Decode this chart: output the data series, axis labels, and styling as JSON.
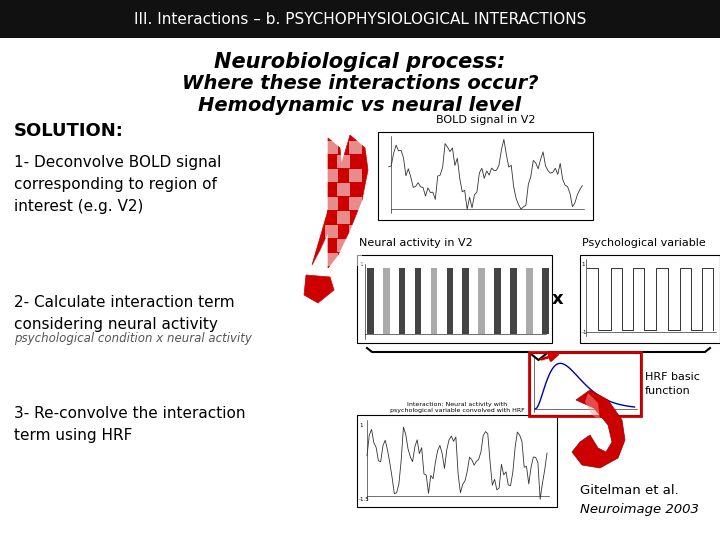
{
  "title_bar_text": "III. Interactions – b. PSYCHOPHYSIOLOGICAL INTERACTIONS",
  "title_bar_bg": "#111111",
  "title_bar_color": "#ffffff",
  "title_bar_fontsize": 11,
  "heading_line1": "Neurobiological process:",
  "heading_line2": "Where these interactions occur?",
  "heading_line3": "Hemodynamic vs neural level",
  "heading_fontsize": 15,
  "solution_text": "SOLUTION:",
  "solution_fontsize": 13,
  "step1_text": "1- Deconvolve BOLD signal\ncorresponding to region of\ninterest (e.g. V2)",
  "step2_text": "2- Calculate interaction term\nconsidering neural activity",
  "step2_sub": "psychological condition x neural activity",
  "step3_text": "3- Re-convolve the interaction\nterm using HRF",
  "bold_label": "BOLD signal in V2",
  "neural_label": "Neural activity in V2",
  "psych_label": "Psychological variable",
  "hrf_label": "HRF basic\nfunction",
  "citation_line1": "Gitelman et al.",
  "citation_line2": "Neuroimage 2003",
  "bg_color": "#ffffff",
  "text_color": "#000000",
  "red_color": "#cc0000",
  "step_fontsize": 11,
  "sub_fontsize": 8.5,
  "label_fontsize": 8
}
